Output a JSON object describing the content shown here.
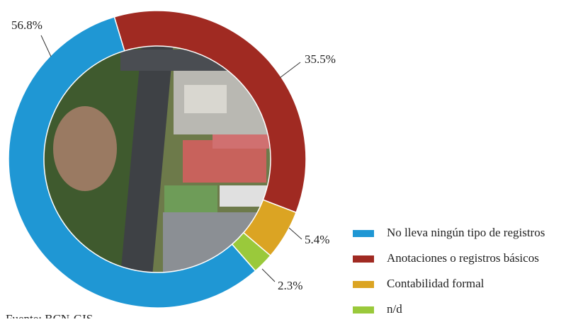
{
  "chart_data": {
    "type": "donut",
    "series": [
      {
        "name": "No lleva ningún tipo de registros",
        "color": "#1f97d4"
      },
      {
        "name": "Anotaciones o registros básicos",
        "color": "#a02a22"
      },
      {
        "name": "Contabilidad formal",
        "color": "#dba423"
      },
      {
        "name": "n/d",
        "color": "#9ac93b"
      }
    ],
    "values": [
      56.8,
      35.5,
      5.4,
      2.3
    ],
    "value_labels": [
      "56.8%",
      "35.5%",
      "5.4%",
      "2.3%"
    ],
    "source": "Fuente: BCN-GIS",
    "legend": "right"
  }
}
